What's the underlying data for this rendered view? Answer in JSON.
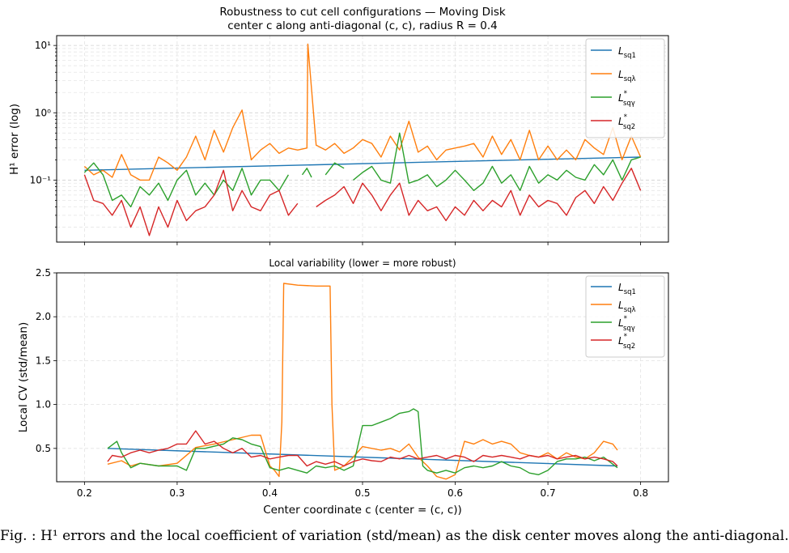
{
  "chart_data": [
    {
      "type": "line",
      "title": "Robustness to cut cell configurations — Moving Disk",
      "subtitle": "center c along anti-diagonal (c, c), radius R = 0.4",
      "ylabel": "H¹ error (log)",
      "xlabel": "",
      "yscale": "log",
      "ylim": [
        0.012,
        14
      ],
      "xlim": [
        0.17,
        0.83
      ],
      "grid": true,
      "legend_position": "top-right",
      "yticks": [
        {
          "value": 0.1,
          "label": "10⁻¹"
        },
        {
          "value": 1,
          "label": "10⁰"
        },
        {
          "value": 10,
          "label": "10¹"
        }
      ],
      "series": [
        {
          "name": "L_sq1",
          "color": "#1f77b4",
          "x": [
            0.2,
            0.8
          ],
          "values": [
            0.14,
            0.22
          ],
          "note_hidden_under_other_lines": true
        },
        {
          "name": "L_sqλ",
          "color": "#ff7f0e",
          "x": [
            0.2,
            0.21,
            0.22,
            0.23,
            0.24,
            0.25,
            0.26,
            0.27,
            0.28,
            0.29,
            0.3,
            0.31,
            0.32,
            0.33,
            0.34,
            0.35,
            0.36,
            0.37,
            0.38,
            0.39,
            0.4,
            0.41,
            0.42,
            0.43,
            0.44,
            0.441,
            0.45,
            0.46,
            0.47,
            0.48,
            0.49,
            0.5,
            0.51,
            0.52,
            0.53,
            0.54,
            0.55,
            0.56,
            0.57,
            0.58,
            0.59,
            0.6,
            0.61,
            0.62,
            0.63,
            0.64,
            0.65,
            0.66,
            0.67,
            0.68,
            0.69,
            0.7,
            0.71,
            0.72,
            0.73,
            0.74,
            0.75,
            0.76,
            0.77,
            0.78,
            0.79,
            0.8
          ],
          "values": [
            0.16,
            0.12,
            0.14,
            0.11,
            0.24,
            0.12,
            0.1,
            0.1,
            0.22,
            0.18,
            0.14,
            0.22,
            0.45,
            0.2,
            0.55,
            0.26,
            0.6,
            1.1,
            0.2,
            0.28,
            0.35,
            0.25,
            0.3,
            0.28,
            0.3,
            10.5,
            0.33,
            0.28,
            0.35,
            0.25,
            0.3,
            0.4,
            0.35,
            0.22,
            0.45,
            0.28,
            0.75,
            0.26,
            0.32,
            0.2,
            0.28,
            0.3,
            0.32,
            0.35,
            0.22,
            0.45,
            0.24,
            0.4,
            0.2,
            0.55,
            0.2,
            0.32,
            0.2,
            0.28,
            0.2,
            0.4,
            0.3,
            0.24,
            0.6,
            0.2,
            0.45,
            0.22
          ]
        },
        {
          "name": "L*_sqγ",
          "color": "#2ca02c",
          "x": [
            0.2,
            0.21,
            0.22,
            0.23,
            0.24,
            0.25,
            0.26,
            0.27,
            0.28,
            0.29,
            0.3,
            0.31,
            0.32,
            0.33,
            0.34,
            0.35,
            0.36,
            0.37,
            0.38,
            0.39,
            0.4,
            0.41,
            0.42,
            null,
            0.435,
            0.44,
            0.445,
            null,
            0.46,
            0.47,
            0.48,
            null,
            0.49,
            0.5,
            0.51,
            0.52,
            0.53,
            0.54,
            0.55,
            0.56,
            0.57,
            0.58,
            0.59,
            0.6,
            0.61,
            0.62,
            0.63,
            0.64,
            0.65,
            0.66,
            0.67,
            0.68,
            0.69,
            0.7,
            0.71,
            0.72,
            0.73,
            0.74,
            0.75,
            0.76,
            0.77,
            0.78,
            0.79,
            0.8
          ],
          "values": [
            0.13,
            0.18,
            0.12,
            0.05,
            0.06,
            0.04,
            0.08,
            0.06,
            0.09,
            0.05,
            0.1,
            0.14,
            0.06,
            0.09,
            0.06,
            0.1,
            0.07,
            0.15,
            0.06,
            0.1,
            0.1,
            0.07,
            0.12,
            null,
            0.12,
            0.15,
            0.11,
            null,
            0.12,
            0.18,
            0.15,
            null,
            0.1,
            0.13,
            0.16,
            0.1,
            0.09,
            0.5,
            0.09,
            0.1,
            0.12,
            0.08,
            0.1,
            0.14,
            0.1,
            0.07,
            0.09,
            0.16,
            0.09,
            0.12,
            0.07,
            0.16,
            0.09,
            0.12,
            0.1,
            0.14,
            0.11,
            0.1,
            0.17,
            0.12,
            0.2,
            0.1,
            0.2,
            0.22
          ]
        },
        {
          "name": "L*_sq2",
          "color": "#d62728",
          "x": [
            0.2,
            0.21,
            0.22,
            0.23,
            0.24,
            0.25,
            0.26,
            0.27,
            0.28,
            0.29,
            0.3,
            0.31,
            0.32,
            0.33,
            0.34,
            0.35,
            0.36,
            0.37,
            0.38,
            0.39,
            0.4,
            0.41,
            0.42,
            0.43,
            null,
            0.45,
            0.46,
            0.47,
            0.48,
            0.49,
            0.5,
            0.51,
            0.52,
            0.53,
            0.54,
            0.55,
            0.56,
            0.57,
            0.58,
            0.59,
            0.6,
            0.61,
            0.62,
            0.63,
            0.64,
            0.65,
            0.66,
            0.67,
            0.68,
            0.69,
            0.7,
            0.71,
            0.72,
            0.73,
            0.74,
            0.75,
            0.76,
            0.77,
            0.78,
            0.79,
            0.8
          ],
          "values": [
            0.12,
            0.05,
            0.045,
            0.03,
            0.05,
            0.02,
            0.04,
            0.015,
            0.04,
            0.02,
            0.05,
            0.025,
            0.035,
            0.04,
            0.06,
            0.14,
            0.035,
            0.07,
            0.04,
            0.035,
            0.06,
            0.07,
            0.03,
            0.045,
            null,
            0.04,
            0.05,
            0.06,
            0.08,
            0.045,
            0.09,
            0.06,
            0.035,
            0.06,
            0.09,
            0.03,
            0.05,
            0.035,
            0.04,
            0.025,
            0.04,
            0.03,
            0.05,
            0.035,
            0.05,
            0.04,
            0.07,
            0.03,
            0.06,
            0.04,
            0.05,
            0.045,
            0.03,
            0.055,
            0.07,
            0.045,
            0.08,
            0.05,
            0.09,
            0.15,
            0.07
          ]
        }
      ]
    },
    {
      "type": "line",
      "title": "Local variability (lower = more robust)",
      "xlabel": "Center coordinate c  (center  = (c, c))",
      "ylabel": "Local CV  (std/mean)",
      "ylim": [
        0.12,
        2.5
      ],
      "xlim": [
        0.17,
        0.83
      ],
      "grid": true,
      "legend_position": "top-right",
      "xticks": [
        "0.2",
        "0.3",
        "0.4",
        "0.5",
        "0.6",
        "0.7",
        "0.8"
      ],
      "yticks": [
        "0.5",
        "1.0",
        "1.5",
        "2.0",
        "2.5"
      ],
      "series": [
        {
          "name": "L_sq1",
          "color": "#1f77b4",
          "x": [
            0.225,
            0.775
          ],
          "values": [
            0.5,
            0.3
          ],
          "note_hidden_under_other_lines": true
        },
        {
          "name": "L_sqλ",
          "color": "#ff7f0e",
          "x": [
            0.225,
            0.24,
            0.25,
            0.26,
            0.28,
            0.3,
            0.32,
            0.34,
            0.36,
            0.38,
            0.39,
            0.4,
            0.405,
            0.41,
            0.413,
            0.415,
            0.43,
            0.45,
            0.465,
            0.467,
            0.47,
            0.48,
            0.49,
            0.5,
            0.51,
            0.52,
            0.53,
            0.54,
            0.55,
            0.56,
            0.57,
            0.58,
            0.59,
            0.6,
            0.61,
            0.62,
            0.63,
            0.64,
            0.65,
            0.66,
            0.67,
            0.68,
            0.69,
            0.7,
            0.71,
            0.72,
            0.73,
            0.74,
            0.75,
            0.76,
            0.77,
            0.775
          ],
          "values": [
            0.32,
            0.36,
            0.3,
            0.33,
            0.3,
            0.33,
            0.51,
            0.55,
            0.6,
            0.65,
            0.65,
            0.3,
            0.25,
            0.18,
            0.8,
            2.38,
            2.36,
            2.35,
            2.35,
            1.0,
            0.25,
            0.3,
            0.4,
            0.52,
            0.5,
            0.48,
            0.5,
            0.46,
            0.55,
            0.4,
            0.3,
            0.18,
            0.15,
            0.2,
            0.58,
            0.55,
            0.6,
            0.55,
            0.58,
            0.55,
            0.45,
            0.42,
            0.4,
            0.45,
            0.38,
            0.45,
            0.4,
            0.38,
            0.45,
            0.58,
            0.55,
            0.48
          ]
        },
        {
          "name": "L*_sqγ",
          "color": "#2ca02c",
          "x": [
            0.225,
            0.235,
            0.24,
            0.25,
            0.26,
            0.28,
            0.3,
            0.31,
            0.32,
            0.33,
            0.35,
            0.36,
            0.37,
            0.38,
            0.39,
            0.4,
            0.41,
            0.42,
            0.43,
            0.44,
            0.45,
            0.46,
            0.47,
            0.48,
            0.49,
            0.5,
            0.51,
            0.52,
            0.53,
            0.54,
            0.55,
            0.555,
            0.56,
            0.565,
            0.57,
            0.58,
            0.59,
            0.6,
            0.61,
            0.62,
            0.63,
            0.64,
            0.65,
            0.66,
            0.67,
            0.68,
            0.69,
            0.7,
            0.71,
            0.72,
            0.73,
            0.74,
            0.75,
            0.76,
            0.77,
            0.775
          ],
          "values": [
            0.5,
            0.58,
            0.45,
            0.28,
            0.33,
            0.3,
            0.3,
            0.25,
            0.5,
            0.5,
            0.55,
            0.62,
            0.6,
            0.55,
            0.52,
            0.28,
            0.25,
            0.28,
            0.25,
            0.22,
            0.3,
            0.28,
            0.3,
            0.25,
            0.3,
            0.76,
            0.76,
            0.8,
            0.84,
            0.9,
            0.92,
            0.95,
            0.92,
            0.3,
            0.25,
            0.22,
            0.25,
            0.22,
            0.28,
            0.3,
            0.28,
            0.3,
            0.35,
            0.3,
            0.28,
            0.22,
            0.2,
            0.25,
            0.35,
            0.38,
            0.38,
            0.4,
            0.36,
            0.4,
            0.32,
            0.28
          ]
        },
        {
          "name": "L*_sq2",
          "color": "#d62728",
          "x": [
            0.225,
            0.23,
            0.24,
            0.25,
            0.26,
            0.27,
            0.28,
            0.29,
            0.3,
            0.31,
            0.32,
            0.33,
            0.34,
            0.35,
            0.36,
            0.37,
            0.38,
            0.39,
            0.4,
            0.41,
            0.42,
            0.43,
            0.44,
            0.45,
            0.46,
            0.47,
            0.48,
            0.49,
            0.5,
            0.51,
            0.52,
            0.53,
            0.54,
            0.55,
            0.56,
            0.57,
            0.58,
            0.59,
            0.6,
            0.61,
            0.62,
            0.63,
            0.64,
            0.65,
            0.66,
            0.67,
            0.68,
            0.69,
            0.7,
            0.71,
            0.72,
            0.73,
            0.74,
            0.75,
            0.76,
            0.77,
            0.775
          ],
          "values": [
            0.35,
            0.42,
            0.4,
            0.45,
            0.48,
            0.45,
            0.48,
            0.5,
            0.55,
            0.55,
            0.7,
            0.55,
            0.58,
            0.5,
            0.45,
            0.5,
            0.4,
            0.42,
            0.38,
            0.4,
            0.42,
            0.42,
            0.3,
            0.35,
            0.32,
            0.35,
            0.3,
            0.35,
            0.38,
            0.36,
            0.35,
            0.4,
            0.38,
            0.42,
            0.38,
            0.4,
            0.42,
            0.38,
            0.42,
            0.4,
            0.35,
            0.42,
            0.4,
            0.42,
            0.4,
            0.38,
            0.42,
            0.4,
            0.42,
            0.38,
            0.4,
            0.42,
            0.38,
            0.4,
            0.38,
            0.35,
            0.3
          ]
        }
      ]
    }
  ],
  "legend": {
    "sq1": {
      "base": "L",
      "sub": "sq1",
      "sup": ""
    },
    "sqlam": {
      "base": "L",
      "sub": "sqλ",
      "sup": ""
    },
    "sqgam": {
      "base": "L",
      "sub": "sqγ",
      "sup": "*"
    },
    "sq2": {
      "base": "L",
      "sub": "sq2",
      "sup": "*"
    }
  },
  "caption": "Fig. : H¹ errors and the local coefficient of variation (std/mean) as the disk center moves along the anti-diagonal."
}
